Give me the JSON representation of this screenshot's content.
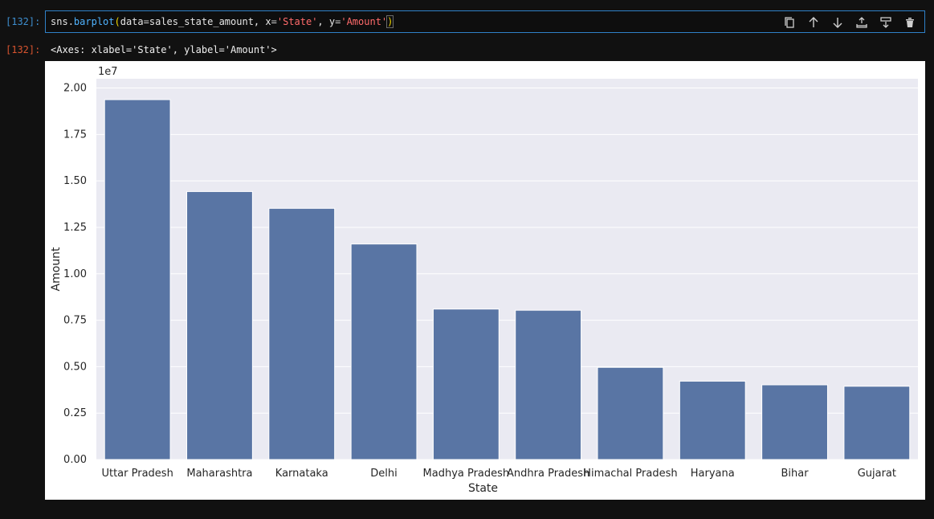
{
  "cell": {
    "input_prompt": "[132]:",
    "code": {
      "var": "sns",
      "dot": ".",
      "func": "barplot",
      "open": "(",
      "arg1_name": "data",
      "eq1": "=",
      "arg1_value": "sales_state_amount, ",
      "arg2_name": "x",
      "eq2": "=",
      "arg2_value": "'State'",
      "sep2": ", ",
      "arg3_name": "y",
      "eq3": "=",
      "arg3_value": "'Amount'",
      "close": ")"
    },
    "toolbar": [
      "copy-icon",
      "arrow-up-icon",
      "arrow-down-icon",
      "insert-above-icon",
      "insert-below-icon",
      "delete-icon"
    ]
  },
  "output": {
    "prompt": "[132]:",
    "text": "<Axes: xlabel='State', ylabel='Amount'>"
  },
  "chart_data": {
    "type": "bar",
    "categories": [
      "Uttar Pradesh",
      "Maharashtra",
      "Karnataka",
      "Delhi",
      "Madhya Pradesh",
      "Andhra Pradesh",
      "Himachal Pradesh",
      "Haryana",
      "Bihar",
      "Gujarat"
    ],
    "values": [
      19374968,
      14427543,
      13523540,
      11603818,
      8101142,
      8037146,
      4963368,
      4220175,
      4022757,
      3946082
    ],
    "title": "",
    "xlabel": "State",
    "ylabel": "Amount",
    "ylim": [
      0,
      20500000
    ],
    "y_ticks": [
      0,
      2500000,
      5000000,
      7500000,
      10000000,
      12500000,
      15000000,
      17500000,
      20000000
    ],
    "y_tick_labels": [
      "0.00",
      "0.25",
      "0.50",
      "0.75",
      "1.00",
      "1.25",
      "1.50",
      "1.75",
      "2.00"
    ],
    "y_offset_text": "1e7",
    "grid": true,
    "bar_color": "#5975a4",
    "plot_background": "#eaeaf2"
  }
}
